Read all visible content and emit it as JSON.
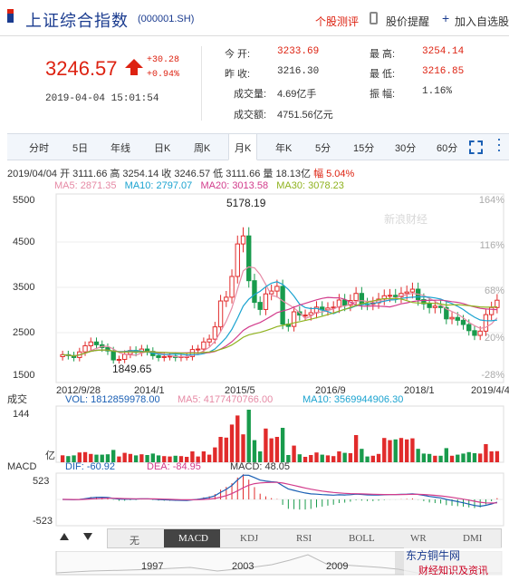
{
  "header": {
    "title": "上证综合指数",
    "code": "(000001.SH)",
    "review_link": "个股测评",
    "alert_link": "股价提醒",
    "watch_link": "加入自选股"
  },
  "quote": {
    "price": "3246.57",
    "change": "+30.28",
    "change_pct": "+0.94%",
    "datetime": "2019-04-04  15:01:54",
    "open_label": "今    开:",
    "open": "3233.69",
    "prev_label": "昨    收:",
    "prev": "3216.30",
    "vol_label": "成交量:",
    "vol": "4.69亿手",
    "amt_label": "成交额:",
    "amt": "4751.56亿元",
    "high_label": "最    高:",
    "high": "3254.14",
    "low_label": "最    低:",
    "low": "3216.85",
    "amp_label": "振    幅:",
    "amp": "1.16%"
  },
  "tabs": [
    "分时",
    "5日",
    "年线",
    "日K",
    "周K",
    "月K",
    "年K",
    "5分",
    "15分",
    "30分",
    "60分"
  ],
  "active_tab": "月K",
  "info_line": {
    "date": "2019/04/04",
    "open": "开 3111.66",
    "high": "高 3254.14",
    "close": "收 3246.57",
    "low": "低 3111.66",
    "vol": "量 18.13亿",
    "amp": "幅 5.04%"
  },
  "ma_line": {
    "ma5": "MA5: 2871.35",
    "ma10": "MA10: 2797.07",
    "ma20": "MA20: 3013.58",
    "ma30": "MA30: 3078.23"
  },
  "price_chart": {
    "y_labels": [
      "5500",
      "4500",
      "3500",
      "2500",
      "1500"
    ],
    "y_right": [
      "164%",
      "116%",
      "68%",
      "20%",
      "-28%"
    ],
    "x_labels": [
      "2012/9/28",
      "2014/1",
      "2015/5",
      "2016/9",
      "2018/1",
      "2019/4/4"
    ],
    "max_label": "5178.19",
    "min_label": "1849.65",
    "watermark": "新浪财经"
  },
  "volume": {
    "label": "成交",
    "vol": "VOL: 1812859978.00",
    "ma5": "MA5: 4177470766.00",
    "ma10": "MA10: 3569944906.30",
    "top": "144",
    "unit": "亿"
  },
  "macd": {
    "label": "MACD",
    "dif": "DIF: -60.92",
    "dea": "DEA: -84.95",
    "macd": "MACD: 48.05",
    "top": "523",
    "bottom": "-523"
  },
  "indicators": [
    "无",
    "MACD",
    "KDJ",
    "RSI",
    "BOLL",
    "WR",
    "DMI"
  ],
  "active_indicator": "MACD",
  "overview": {
    "years": [
      "1997",
      "2003",
      "2009"
    ],
    "brand": "东方铜牛网",
    "brand_sub": "财经知识及资讯"
  },
  "chart_data": {
    "type": "candlestick",
    "title": "上证综合指数 月K",
    "x_range": [
      "2012/9/28",
      "2019/4/4"
    ],
    "ylim": [
      1500,
      5500
    ],
    "max": 5178.19,
    "min": 1849.65,
    "last": {
      "date": "2019/04/04",
      "open": 3111.66,
      "high": 3254.14,
      "low": 3111.66,
      "close": 3246.57
    },
    "closes": [
      2090,
      2070,
      2030,
      2150,
      2280,
      2360,
      2300,
      2240,
      2170,
      1980,
      1990,
      2100,
      2180,
      2140,
      2210,
      2160,
      2070,
      2030,
      2050,
      2060,
      2030,
      2050,
      2050,
      2200,
      2210,
      2360,
      2420,
      2680,
      3230,
      3310,
      3750,
      4440,
      4610,
      3660,
      3200,
      3050,
      3380,
      3440,
      3540,
      2740,
      2690,
      3000,
      2930,
      2930,
      2980,
      3100,
      3040,
      3080,
      3100,
      3250,
      3140,
      3240,
      3390,
      3170,
      3160,
      3190,
      3270,
      3340,
      3350,
      3320,
      3390,
      3420,
      3480,
      3260,
      3170,
      3090,
      3120,
      3090,
      2850,
      2880,
      2820,
      2730,
      2600,
      2500,
      2590,
      2940,
      3090,
      3246
    ]
  }
}
